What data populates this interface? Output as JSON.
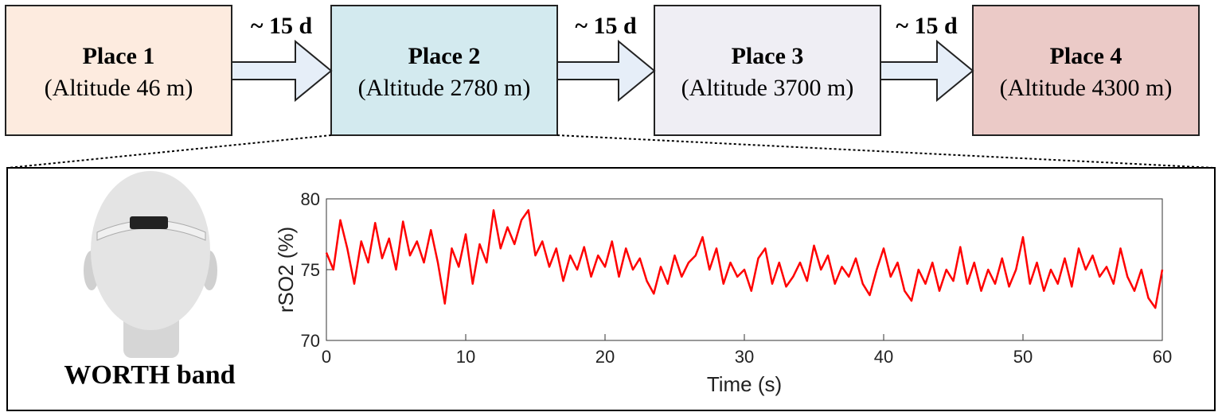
{
  "nodes": [
    {
      "title": "Place 1",
      "subtitle": "(Altitude 46 m)"
    },
    {
      "title": "Place 2",
      "subtitle": "(Altitude 2780 m)"
    },
    {
      "title": "Place 3",
      "subtitle": "(Altitude 3700 m)"
    },
    {
      "title": "Place 4",
      "subtitle": "(Altitude 4300 m)"
    }
  ],
  "arrows": [
    {
      "label": "~ 15 d"
    },
    {
      "label": "~ 15 d"
    },
    {
      "label": "~ 15 d"
    }
  ],
  "device": {
    "label": "WORTH band"
  },
  "chart_data": {
    "type": "line",
    "xlabel": "Time (s)",
    "ylabel": "rSO2 (%)",
    "color": "#ff0000",
    "xlim": [
      0,
      60
    ],
    "ylim": [
      70,
      80
    ],
    "xticks": [
      0,
      10,
      20,
      30,
      40,
      50,
      60
    ],
    "yticks": [
      70,
      75,
      80
    ],
    "x": [
      0,
      0.5,
      1,
      1.5,
      2,
      2.5,
      3,
      3.5,
      4,
      4.5,
      5,
      5.5,
      6,
      6.5,
      7,
      7.5,
      8,
      8.5,
      9,
      9.5,
      10,
      10.5,
      11,
      11.5,
      12,
      12.5,
      13,
      13.5,
      14,
      14.5,
      15,
      15.5,
      16,
      16.5,
      17,
      17.5,
      18,
      18.5,
      19,
      19.5,
      20,
      20.5,
      21,
      21.5,
      22,
      22.5,
      23,
      23.5,
      24,
      24.5,
      25,
      25.5,
      26,
      26.5,
      27,
      27.5,
      28,
      28.5,
      29,
      29.5,
      30,
      30.5,
      31,
      31.5,
      32,
      32.5,
      33,
      33.5,
      34,
      34.5,
      35,
      35.5,
      36,
      36.5,
      37,
      37.5,
      38,
      38.5,
      39,
      39.5,
      40,
      40.5,
      41,
      41.5,
      42,
      42.5,
      43,
      43.5,
      44,
      44.5,
      45,
      45.5,
      46,
      46.5,
      47,
      47.5,
      48,
      48.5,
      49,
      49.5,
      50,
      50.5,
      51,
      51.5,
      52,
      52.5,
      53,
      53.5,
      54,
      54.5,
      55,
      55.5,
      56,
      56.5,
      57,
      57.5,
      58,
      58.5,
      59,
      59.5,
      60
    ],
    "values": [
      76.2,
      75.0,
      78.5,
      76.5,
      74.0,
      77.0,
      75.5,
      78.3,
      75.8,
      77.2,
      75.0,
      78.4,
      76.0,
      77.0,
      75.5,
      77.8,
      75.5,
      72.6,
      76.5,
      75.2,
      77.5,
      74.0,
      76.8,
      75.5,
      79.2,
      76.5,
      78.0,
      76.8,
      78.5,
      79.2,
      76.0,
      77.0,
      75.2,
      76.5,
      74.2,
      76.0,
      75.0,
      76.6,
      74.5,
      76.0,
      75.2,
      77.0,
      74.5,
      76.5,
      75.0,
      75.8,
      74.2,
      73.3,
      75.2,
      74.0,
      76.0,
      74.5,
      75.5,
      76.0,
      77.3,
      75.0,
      76.5,
      74.0,
      75.5,
      74.5,
      75.0,
      73.5,
      75.8,
      76.5,
      74.0,
      75.5,
      73.8,
      74.5,
      75.5,
      74.2,
      76.7,
      75.0,
      76.0,
      74.0,
      75.2,
      74.5,
      75.8,
      74.0,
      73.2,
      75.0,
      76.5,
      74.5,
      75.5,
      73.5,
      72.8,
      75.0,
      74.0,
      75.5,
      73.5,
      75.0,
      74.2,
      76.6,
      74.0,
      75.5,
      73.5,
      75.0,
      74.0,
      75.8,
      73.8,
      75.0,
      77.3,
      74.0,
      75.5,
      73.5,
      75.0,
      74.0,
      75.8,
      73.8,
      76.5,
      75.0,
      76.0,
      74.5,
      75.2,
      74.0,
      76.5,
      74.5,
      73.5,
      75.0,
      73.0,
      72.3,
      75.0
    ]
  }
}
